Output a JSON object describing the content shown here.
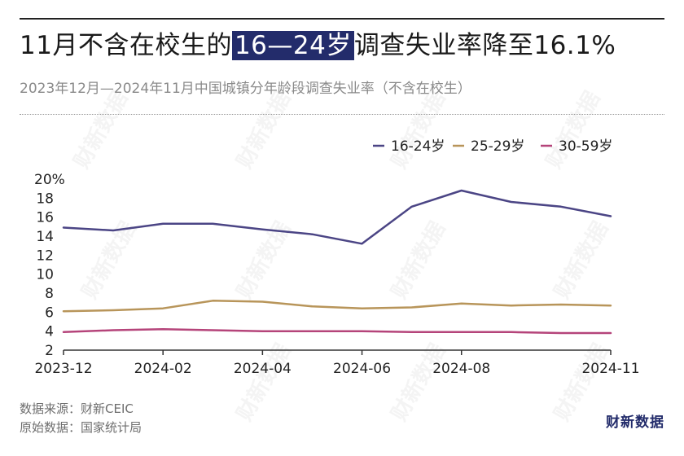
{
  "header": {
    "title_pre": "11月不含在校生的",
    "title_highlight": "16—24岁",
    "title_post": "调查失业率降至16.1%",
    "subtitle": "2023年12月—2024年11月中国城镇分年龄段调查失业率（不含在校生）"
  },
  "footer": {
    "source": "数据来源：财新CEIC",
    "original": "原始数据：国家统计局",
    "brand": "财新数据",
    "watermark": "财新数据"
  },
  "colors": {
    "series_16_24": "#4b4585",
    "series_25_29": "#b8955a",
    "series_30_59": "#b5447a",
    "axis": "#333333",
    "highlight": "#232c6b"
  },
  "chart_data": {
    "type": "line",
    "x": [
      "2023-12",
      "2024-01",
      "2024-02",
      "2024-03",
      "2024-04",
      "2024-05",
      "2024-06",
      "2024-07",
      "2024-08",
      "2024-09",
      "2024-10",
      "2024-11"
    ],
    "x_tick_labels": [
      "2023-12",
      "2024-02",
      "2024-04",
      "2024-06",
      "2024-08",
      "2024-11"
    ],
    "y_ticks": [
      "2",
      "4",
      "6",
      "8",
      "10",
      "12",
      "14",
      "16",
      "18",
      "20%"
    ],
    "ylim": [
      2,
      20
    ],
    "grid": false,
    "legend_position": "top-right",
    "series": [
      {
        "name": "16-24岁",
        "values": [
          14.9,
          14.6,
          15.3,
          15.3,
          14.7,
          14.2,
          13.2,
          17.1,
          18.8,
          17.6,
          17.1,
          16.1
        ]
      },
      {
        "name": "25-29岁",
        "values": [
          6.1,
          6.2,
          6.4,
          7.2,
          7.1,
          6.6,
          6.4,
          6.5,
          6.9,
          6.7,
          6.8,
          6.7
        ]
      },
      {
        "name": "30-59岁",
        "values": [
          3.9,
          4.1,
          4.2,
          4.1,
          4.0,
          4.0,
          4.0,
          3.9,
          3.9,
          3.9,
          3.8,
          3.8
        ]
      }
    ]
  }
}
